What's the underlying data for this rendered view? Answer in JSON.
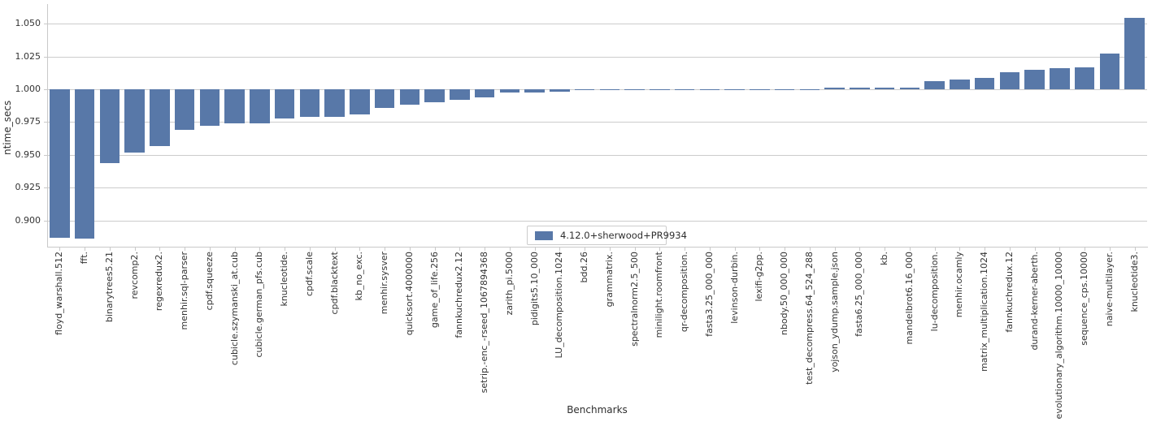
{
  "colors": {
    "bar": "#5878a8",
    "grid": "#cccccc",
    "spine": "#c9c9c9",
    "text": "#333333"
  },
  "chart_data": {
    "type": "bar",
    "title": "",
    "xlabel": "Benchmarks",
    "ylabel": "ntime_secs",
    "baseline": 1.0,
    "ylim": [
      0.88,
      1.065
    ],
    "yticks": [
      "0.900",
      "0.925",
      "0.950",
      "0.975",
      "1.000",
      "1.025",
      "1.050"
    ],
    "grid": true,
    "legend_position": "lower center",
    "categories": [
      "floyd_warshall.512",
      "fft.",
      "binarytrees5.21",
      "revcomp2.",
      "regexredux2.",
      "menhir.sql-parser",
      "cpdf.squeeze",
      "cubicle.szymanski_at.cub",
      "cubicle.german_pfs.cub",
      "knucleotide.",
      "cpdf.scale",
      "cpdf.blacktext",
      "kb_no_exc.",
      "menhir.sysver",
      "quicksort.4000000",
      "game_of_life.256",
      "fannkuchredux2.12",
      "setrip.-enc_-rseed_1067894368",
      "zarith_pi.5000",
      "pidigits5.10_000",
      "LU_decomposition.1024",
      "bdd.26",
      "grammatrix.",
      "spectralnorm2.5_500",
      "minilight.roomfront",
      "qr-decomposition.",
      "fasta3.25_000_000",
      "levinson-durbin.",
      "lexifi-g2pp.",
      "nbody.50_000_000",
      "test_decompress.64_524_288",
      "yojson_ydump.sample.json",
      "fasta6.25_000_000",
      "kb.",
      "mandelbrot6.16_000",
      "lu-decomposition.",
      "menhir.ocamly",
      "matrix_multiplication.1024",
      "fannkuchredux.12",
      "durand-kerner-aberth.",
      "evolutionary_algorithm.10000_10000",
      "sequence_cps.10000",
      "naive-multilayer.",
      "knucleotide3."
    ],
    "series": [
      {
        "name": "4.12.0+sherwood+PR9934",
        "values": [
          0.887,
          0.886,
          0.944,
          0.952,
          0.957,
          0.969,
          0.972,
          0.974,
          0.974,
          0.978,
          0.979,
          0.979,
          0.981,
          0.986,
          0.988,
          0.99,
          0.992,
          0.994,
          0.9975,
          0.9975,
          0.998,
          0.9998,
          0.9998,
          0.9999,
          0.9999,
          0.9999,
          1.0,
          1.0,
          1.0,
          1.0,
          1.0,
          1.001,
          1.001,
          1.0015,
          1.0015,
          1.006,
          1.0075,
          1.0085,
          1.013,
          1.015,
          1.016,
          1.017,
          1.027,
          1.0545
        ]
      }
    ]
  }
}
